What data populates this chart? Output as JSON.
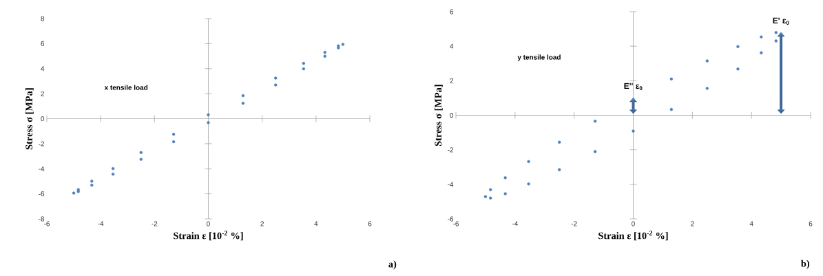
{
  "chart_data": [
    {
      "type": "scatter",
      "xlabel": "Strain  ε [10$^{-2}$ %]",
      "ylabel": "Stress σ [MPa]",
      "color": "#4f81bd",
      "xlim": [
        -6,
        6
      ],
      "ylim": [
        -8,
        8
      ],
      "xticks": [
        -6,
        -4,
        -2,
        0,
        2,
        4,
        6
      ],
      "yticks": [
        -8,
        -6,
        -4,
        -2,
        0,
        2,
        4,
        6,
        8
      ],
      "x": [
        0,
        1.29,
        2.5,
        3.54,
        4.33,
        4.83,
        5,
        4.83,
        4.33,
        3.54,
        2.5,
        1.29,
        0,
        -1.29,
        -2.5,
        -3.54,
        -4.33,
        -4.83,
        -5,
        -4.83,
        -4.33,
        -3.54,
        -2.5,
        -1.29
      ],
      "values": [
        0.31,
        1.84,
        3.24,
        4.42,
        5.3,
        5.82,
        5.94,
        5.66,
        4.99,
        3.98,
        2.7,
        1.24,
        -0.31,
        -1.84,
        -3.24,
        -4.42,
        -5.3,
        -5.82,
        -5.94,
        -5.66,
        -4.99,
        -3.98,
        -2.7,
        -1.24
      ],
      "annotations": [
        "x tensile load",
        "a)"
      ]
    },
    {
      "type": "scatter",
      "xlabel": "Strain  ε [10$^{-2}$ %]",
      "ylabel": "Stress σ [MPa]",
      "color": "#4f81bd",
      "xlim": [
        -6,
        6
      ],
      "ylim": [
        -6,
        6
      ],
      "xticks": [
        -6,
        -4,
        -2,
        0,
        2,
        4,
        6
      ],
      "yticks": [
        -6,
        -4,
        -2,
        0,
        2,
        4,
        6
      ],
      "x": [
        0,
        1.29,
        2.5,
        3.54,
        4.33,
        4.83,
        5,
        4.83,
        4.33,
        3.54,
        2.5,
        1.29,
        0,
        -1.29,
        -2.5,
        -3.54,
        -4.33,
        -4.83,
        -5,
        -4.83,
        -4.33,
        -3.54,
        -2.5,
        -1.29
      ],
      "values": [
        0.92,
        2.1,
        3.15,
        3.98,
        4.54,
        4.79,
        4.71,
        4.31,
        3.62,
        2.68,
        1.56,
        0.34,
        -0.92,
        -2.1,
        -3.15,
        -3.98,
        -4.54,
        -4.79,
        -4.71,
        -4.31,
        -3.62,
        -2.68,
        -1.56,
        -0.34
      ],
      "annotations": [
        "y tensile load",
        {
          "text": "E'' ε$_{0}$",
          "x": 0,
          "y": 0.92
        },
        {
          "text": "E' ε$_{0}$",
          "x": 5,
          "y": 4.71
        },
        "b)"
      ]
    }
  ]
}
